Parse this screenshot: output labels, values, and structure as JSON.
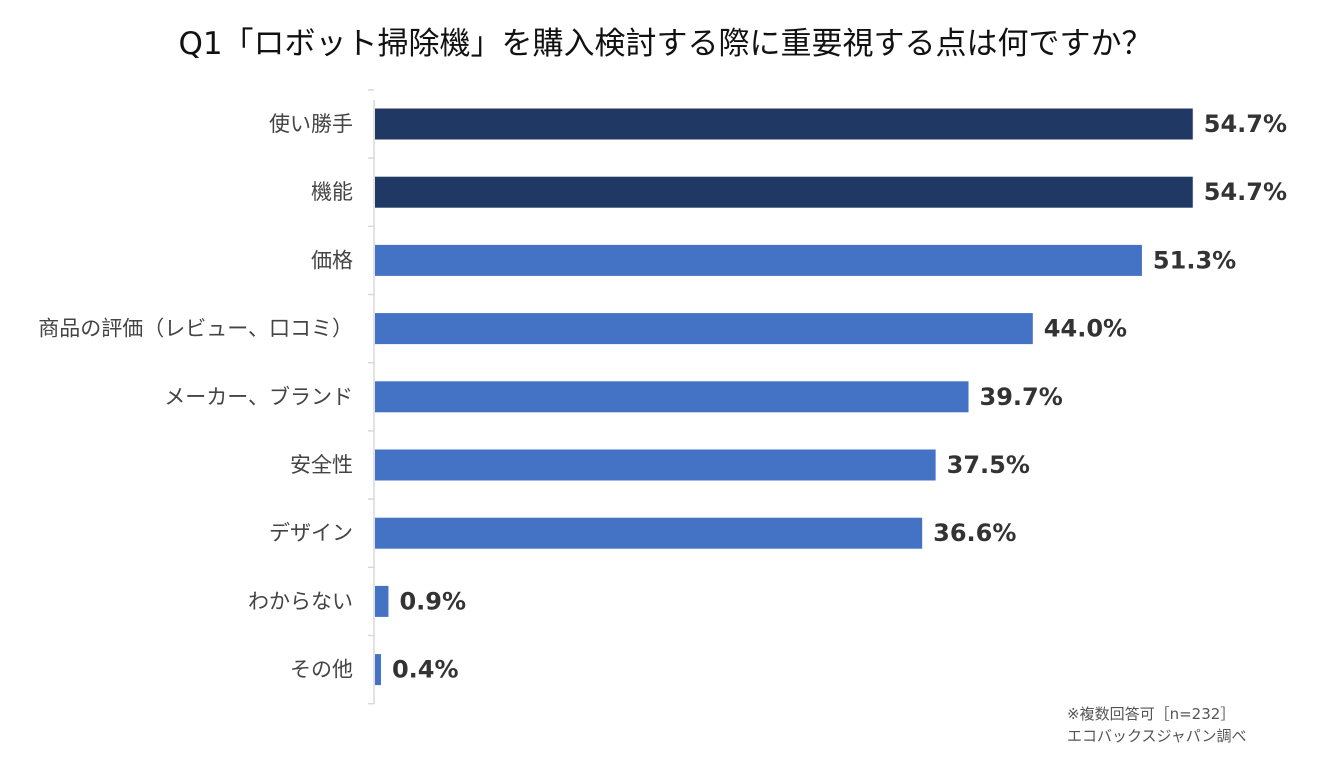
{
  "title": "Q1「ロボット掃除機」を購入検討する際に重要視する点は何ですか？",
  "colors": {
    "highlight": "#1f3864",
    "bar": "#4472c4",
    "axis": "#d9d9d9",
    "label": "#444444",
    "value": "#333333"
  },
  "chart_data": {
    "type": "bar",
    "orientation": "horizontal",
    "title": "Q1「ロボット掃除機」を購入検討する際に重要視する点は何ですか？",
    "xlabel": "",
    "ylabel": "",
    "unit": "%",
    "xlim": [
      0,
      60
    ],
    "grid": false,
    "categories": [
      "使い勝手",
      "機能",
      "価格",
      "商品の評価（レビュー、口コミ）",
      "メーカー、ブランド",
      "安全性",
      "デザイン",
      "わからない",
      "その他"
    ],
    "values": [
      54.7,
      54.7,
      51.3,
      44.0,
      39.7,
      37.5,
      36.6,
      0.9,
      0.4
    ],
    "value_labels": [
      "54.7%",
      "54.7%",
      "51.3%",
      "44.0%",
      "39.7%",
      "37.5%",
      "36.6%",
      "0.9%",
      "0.4%"
    ],
    "highlighted": [
      true,
      true,
      false,
      false,
      false,
      false,
      false,
      false,
      false
    ]
  },
  "notes": {
    "line1": "※複数回答可［n=232］",
    "line2": "エコバックスジャパン調べ"
  }
}
